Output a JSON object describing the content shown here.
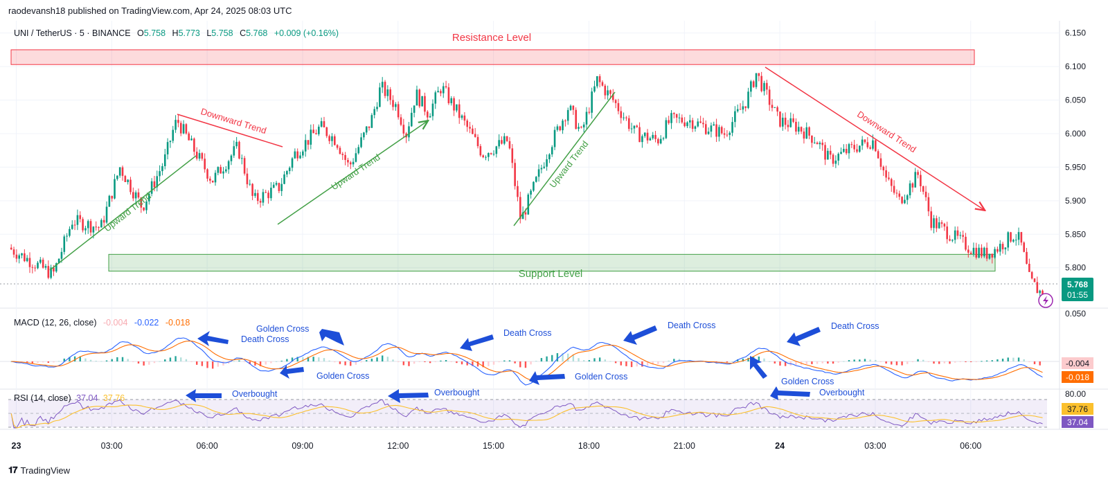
{
  "header": {
    "caption": "raodevansh18 published on TradingView.com, Apr 24, 2025 08:03 UTC"
  },
  "legend": {
    "symbol": "UNI / TetherUS · 5 · BINANCE",
    "o_label": "O",
    "o_value": "5.758",
    "h_label": "H",
    "h_value": "5.773",
    "l_label": "L",
    "l_value": "5.758",
    "c_label": "C",
    "c_value": "5.768",
    "change": "+0.009 (+0.16%)"
  },
  "annotations": {
    "resistance": "Resistance Level",
    "support": "Support Level",
    "upward_trend": "Upward Trend",
    "downward_trend": "Downward Trend",
    "golden_cross": "Golden Cross",
    "death_cross": "Death Cross",
    "overbought": "Overbought"
  },
  "macd_legend": {
    "title": "MACD (12, 26, close)",
    "v1": "-0.004",
    "v2": "-0.022",
    "v3": "-0.018"
  },
  "rsi_legend": {
    "title": "RSI (14, close)",
    "v1": "37.04",
    "v2": "37.76"
  },
  "price_tag": {
    "value": "5.768",
    "countdown": "01:55"
  },
  "macd_tags": {
    "hist": "-0.004",
    "signal": "-0.018",
    "top": "0.050"
  },
  "rsi_tags": {
    "ma": "37.76",
    "rsi": "37.04",
    "top": "80.00"
  },
  "brand": {
    "name": "TradingView"
  },
  "colors": {
    "up": "#089981",
    "down": "#f23645",
    "resistance": "#f23645",
    "support": "#43a047",
    "macd": "#2962ff",
    "signal": "#ff6d00",
    "rsi": "#7e57c2",
    "rsi_ma": "#fbc02d",
    "arrow": "#1d4ed8"
  },
  "chart_data": {
    "type": "candlestick",
    "y_axis": {
      "ticks": [
        "6.150",
        "6.100",
        "6.050",
        "6.000",
        "5.950",
        "5.900",
        "5.850",
        "5.800"
      ],
      "range": [
        5.745,
        6.16
      ]
    },
    "x_axis": {
      "ticks": [
        {
          "label": "23",
          "hour": 0
        },
        {
          "label": "03:00",
          "hour": 3
        },
        {
          "label": "06:00",
          "hour": 6
        },
        {
          "label": "09:00",
          "hour": 9
        },
        {
          "label": "12:00",
          "hour": 12
        },
        {
          "label": "15:00",
          "hour": 15
        },
        {
          "label": "18:00",
          "hour": 18
        },
        {
          "label": "21:00",
          "hour": 21
        },
        {
          "label": "24",
          "hour": 24
        },
        {
          "label": "03:00",
          "hour": 27
        },
        {
          "label": "06:00",
          "hour": 30
        }
      ],
      "range_hours": [
        -0.25,
        32.4
      ]
    },
    "resistance_zone": [
      6.103,
      6.125
    ],
    "support_zone": [
      5.795,
      5.82
    ],
    "price_path": [
      [
        -0.2,
        5.83
      ],
      [
        1.2,
        5.79
      ],
      [
        1.8,
        5.87
      ],
      [
        2.7,
        5.86
      ],
      [
        3.3,
        5.95
      ],
      [
        4.0,
        5.89
      ],
      [
        4.7,
        5.96
      ],
      [
        5.0,
        6.01
      ],
      [
        5.1,
        6.02
      ],
      [
        5.7,
        5.97
      ],
      [
        6.2,
        5.93
      ],
      [
        7.0,
        5.98
      ],
      [
        7.5,
        5.9
      ],
      [
        8.3,
        5.92
      ],
      [
        8.8,
        5.97
      ],
      [
        9.6,
        6.01
      ],
      [
        10.1,
        5.99
      ],
      [
        10.5,
        5.95
      ],
      [
        11.2,
        6.02
      ],
      [
        11.5,
        6.07
      ],
      [
        12.0,
        6.04
      ],
      [
        12.3,
        6.0
      ],
      [
        12.6,
        6.06
      ],
      [
        13.0,
        6.03
      ],
      [
        13.4,
        6.07
      ],
      [
        14.2,
        6.01
      ],
      [
        14.7,
        5.97
      ],
      [
        15.5,
        5.99
      ],
      [
        15.9,
        5.87
      ],
      [
        16.8,
        5.98
      ],
      [
        17.4,
        6.04
      ],
      [
        17.8,
        6.0
      ],
      [
        18.3,
        6.08
      ],
      [
        18.8,
        6.05
      ],
      [
        19.5,
        6.0
      ],
      [
        20.2,
        5.99
      ],
      [
        20.6,
        6.02
      ],
      [
        21.2,
        6.02
      ],
      [
        21.7,
        6.01
      ],
      [
        22.3,
        6.0
      ],
      [
        23.0,
        6.05
      ],
      [
        23.3,
        6.09
      ],
      [
        23.6,
        6.06
      ],
      [
        24.0,
        6.02
      ],
      [
        24.6,
        6.01
      ],
      [
        25.2,
        5.99
      ],
      [
        25.6,
        5.96
      ],
      [
        26.4,
        5.98
      ],
      [
        27.0,
        5.99
      ],
      [
        27.4,
        5.93
      ],
      [
        27.8,
        5.9
      ],
      [
        28.4,
        5.94
      ],
      [
        28.8,
        5.87
      ],
      [
        29.4,
        5.85
      ],
      [
        30.0,
        5.83
      ],
      [
        30.5,
        5.82
      ],
      [
        30.9,
        5.83
      ],
      [
        31.4,
        5.85
      ],
      [
        31.6,
        5.84
      ],
      [
        31.9,
        5.78
      ],
      [
        32.3,
        5.76
      ]
    ],
    "macd": {
      "legend": [
        "-0.004",
        "-0.022",
        "-0.018"
      ],
      "axis_top": "0.050"
    },
    "rsi": {
      "legend": [
        "37.04",
        "37.76"
      ],
      "axis_top": "80.00",
      "overbought": 80
    }
  }
}
